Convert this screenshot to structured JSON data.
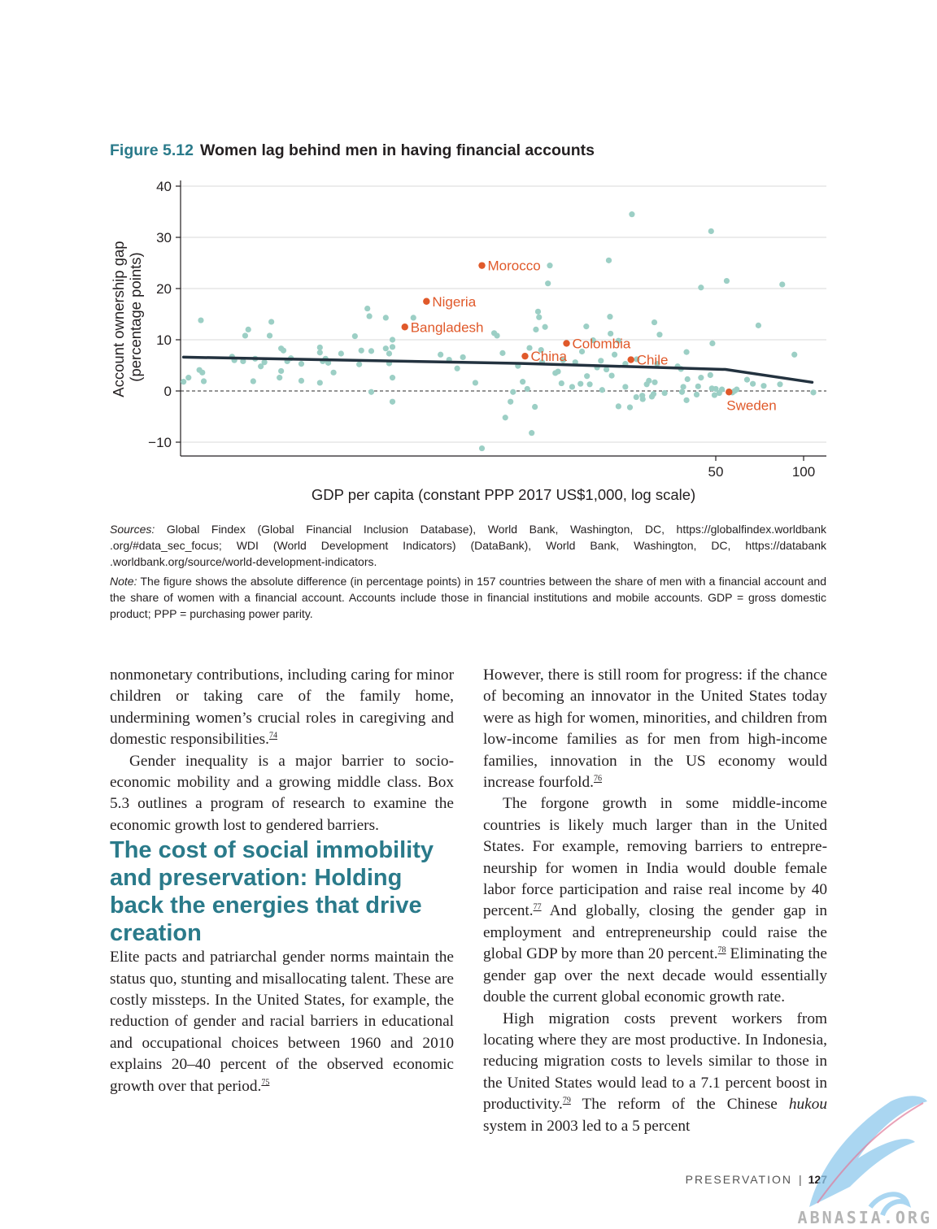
{
  "figure": {
    "number": "Figure 5.12",
    "title": "Women lag behind men in having financial accounts"
  },
  "chart_data": {
    "type": "scatter",
    "xlabel": "GDP per capita (constant PPP 2017 US$1,000, log scale)",
    "ylabel": [
      "Account ownership gap",
      "(percentage points)"
    ],
    "x_scale": "log",
    "xlim": [
      0.7,
      115
    ],
    "ylim": [
      -12,
      40
    ],
    "x_ticks": [
      {
        "v": 50,
        "label": "50"
      },
      {
        "v": 100,
        "label": "100"
      }
    ],
    "y_ticks": [
      {
        "v": 40,
        "label": "40"
      },
      {
        "v": 30,
        "label": "30"
      },
      {
        "v": 20,
        "label": "20"
      },
      {
        "v": 10,
        "label": "10"
      },
      {
        "v": 0,
        "label": "0"
      },
      {
        "v": -10,
        "label": "−10"
      }
    ],
    "grid": true,
    "zero_line": "dashed",
    "colors": {
      "points": "#9ccfc5",
      "highlight": "#e0592a",
      "trend": "#23323f",
      "grid": "#d9d9d9"
    },
    "trend_line": [
      {
        "x": 0.75,
        "y": 6.6
      },
      {
        "x": 10.5,
        "y": 5.4
      },
      {
        "x": 54,
        "y": 4.2
      },
      {
        "x": 107,
        "y": 1.7
      }
    ],
    "highlighted": [
      {
        "label": "Morocco",
        "x": 7.9,
        "y": 24.5,
        "label_pos": "right"
      },
      {
        "label": "Nigeria",
        "x": 5.1,
        "y": 17.5,
        "label_pos": "right"
      },
      {
        "label": "Bangladesh",
        "x": 5.1,
        "y": 12.5,
        "label_pos": "right",
        "dot_x": 4.3
      },
      {
        "label": "Colombia",
        "x": 15.4,
        "y": 9.3,
        "label_pos": "right"
      },
      {
        "label": "China",
        "x": 11.1,
        "y": 6.8,
        "label_pos": "right"
      },
      {
        "label": "Chile",
        "x": 25.6,
        "y": 6.1,
        "label_pos": "right"
      },
      {
        "label": "Sweden",
        "x": 55.5,
        "y": -0.2,
        "label_pos": "below"
      }
    ],
    "points": [
      [
        0.75,
        1.8
      ],
      [
        0.78,
        2.6
      ],
      [
        0.85,
        4.1
      ],
      [
        0.87,
        3.6
      ],
      [
        0.88,
        1.9
      ],
      [
        0.86,
        13.8
      ],
      [
        1.1,
        6.7
      ],
      [
        1.12,
        6.0
      ],
      [
        1.2,
        5.8
      ],
      [
        1.22,
        10.8
      ],
      [
        1.25,
        12.0
      ],
      [
        1.3,
        1.9
      ],
      [
        1.32,
        6.3
      ],
      [
        1.38,
        4.8
      ],
      [
        1.42,
        5.6
      ],
      [
        1.48,
        10.8
      ],
      [
        1.5,
        13.5
      ],
      [
        1.62,
        8.3
      ],
      [
        1.65,
        7.9
      ],
      [
        1.7,
        5.8
      ],
      [
        1.75,
        6.4
      ],
      [
        1.62,
        3.9
      ],
      [
        1.6,
        2.6
      ],
      [
        1.9,
        5.3
      ],
      [
        1.9,
        2.0
      ],
      [
        2.2,
        8.5
      ],
      [
        2.2,
        7.5
      ],
      [
        2.2,
        1.6
      ],
      [
        2.25,
        5.8
      ],
      [
        2.3,
        6.3
      ],
      [
        2.35,
        5.5
      ],
      [
        2.45,
        3.6
      ],
      [
        2.6,
        7.3
      ],
      [
        2.9,
        10.7
      ],
      [
        3.0,
        5.2
      ],
      [
        3.05,
        7.9
      ],
      [
        3.3,
        7.8
      ],
      [
        3.3,
        -0.2
      ],
      [
        3.2,
        16.1
      ],
      [
        3.25,
        14.6
      ],
      [
        3.7,
        14.3
      ],
      [
        3.7,
        8.3
      ],
      [
        3.8,
        7.3
      ],
      [
        3.8,
        5.4
      ],
      [
        3.9,
        10.0
      ],
      [
        3.9,
        8.6
      ],
      [
        3.9,
        2.6
      ],
      [
        3.9,
        -2.1
      ],
      [
        4.6,
        14.3
      ],
      [
        5.7,
        7.1
      ],
      [
        6.1,
        6.1
      ],
      [
        6.8,
        6.6
      ],
      [
        6.5,
        4.4
      ],
      [
        7.5,
        1.6
      ],
      [
        7.9,
        -11.2
      ],
      [
        8.7,
        11.3
      ],
      [
        8.9,
        10.8
      ],
      [
        9.3,
        7.4
      ],
      [
        9.5,
        -5.2
      ],
      [
        9.9,
        -2.1
      ],
      [
        10.1,
        -0.2
      ],
      [
        10.5,
        4.9
      ],
      [
        10.9,
        1.8
      ],
      [
        11.3,
        0.4
      ],
      [
        11.5,
        8.4
      ],
      [
        11.7,
        -8.2
      ],
      [
        12.0,
        -3.1
      ],
      [
        12.1,
        12.0
      ],
      [
        12.3,
        15.5
      ],
      [
        12.4,
        14.4
      ],
      [
        12.6,
        8.0
      ],
      [
        12.7,
        5.6
      ],
      [
        13.0,
        12.5
      ],
      [
        13.3,
        21.0
      ],
      [
        13.5,
        24.5
      ],
      [
        14.1,
        3.5
      ],
      [
        14.4,
        3.8
      ],
      [
        14.8,
        1.5
      ],
      [
        15.0,
        6.0
      ],
      [
        16.1,
        0.8
      ],
      [
        16.5,
        5.6
      ],
      [
        17.2,
        1.4
      ],
      [
        17.4,
        7.7
      ],
      [
        18.0,
        12.6
      ],
      [
        18.1,
        2.9
      ],
      [
        18.5,
        1.3
      ],
      [
        19.0,
        9.9
      ],
      [
        19.6,
        4.6
      ],
      [
        20.2,
        5.9
      ],
      [
        20.4,
        0.2
      ],
      [
        21.1,
        4.2
      ],
      [
        21.5,
        25.5
      ],
      [
        21.7,
        14.5
      ],
      [
        21.8,
        11.2
      ],
      [
        22.0,
        3.0
      ],
      [
        22.5,
        7.1
      ],
      [
        23.2,
        -3.0
      ],
      [
        23.2,
        9.8
      ],
      [
        24.5,
        5.3
      ],
      [
        24.5,
        0.8
      ],
      [
        25.4,
        -3.2
      ],
      [
        25.8,
        34.5
      ],
      [
        26.7,
        -1.2
      ],
      [
        26.8,
        6.2
      ],
      [
        28.0,
        -0.9
      ],
      [
        28.1,
        -1.6
      ],
      [
        29.0,
        1.3
      ],
      [
        29.5,
        2.0
      ],
      [
        30.2,
        -1.1
      ],
      [
        30.6,
        -0.6
      ],
      [
        30.9,
        1.7
      ],
      [
        30.8,
        13.4
      ],
      [
        31.5,
        5.3
      ],
      [
        32.1,
        11.0
      ],
      [
        33.4,
        -0.4
      ],
      [
        37.0,
        4.8
      ],
      [
        38.0,
        4.3
      ],
      [
        38.3,
        -0.2
      ],
      [
        38.7,
        0.8
      ],
      [
        39.7,
        -1.8
      ],
      [
        40.0,
        2.3
      ],
      [
        39.7,
        7.6
      ],
      [
        43.0,
        -0.7
      ],
      [
        43.5,
        0.9
      ],
      [
        44.5,
        2.6
      ],
      [
        44.5,
        20.2
      ],
      [
        47.9,
        3.1
      ],
      [
        48.5,
        0.5
      ],
      [
        48.7,
        9.3
      ],
      [
        48.2,
        31.2
      ],
      [
        49.5,
        -0.8
      ],
      [
        50.0,
        0.4
      ],
      [
        51.4,
        -0.4
      ],
      [
        52.5,
        0.3
      ],
      [
        54.5,
        21.5
      ],
      [
        57.0,
        -0.3
      ],
      [
        58.0,
        0.0
      ],
      [
        59.0,
        0.3
      ],
      [
        64.0,
        2.2
      ],
      [
        67.0,
        1.4
      ],
      [
        70.0,
        12.8
      ],
      [
        73.0,
        1.0
      ],
      [
        83.0,
        1.3
      ],
      [
        84.5,
        20.8
      ],
      [
        93.0,
        7.1
      ],
      [
        108,
        -0.3
      ]
    ]
  },
  "notes": {
    "sources_label": "Sources:",
    "sources_text": "Global Findex (Global Financial Inclusion Database), World Bank, Washington, DC, https://globalfindex.worldbank .org/#data_sec_focus; WDI (World Development Indicators) (DataBank), World Bank, Washington, DC, https://databank .worldbank.org/source/world-development-indicators.",
    "note_label": "Note:",
    "note_text": "The figure shows the absolute difference (in percentage points) in 157 countries between the share of men with a financial account and the share of women with a financial account. Accounts include those in financial institutions and mobile accounts. GDP = gross domestic product; PPP = purchasing power parity."
  },
  "body": {
    "left": {
      "p1_text": "nonmonetary contributions, including caring for minor children or taking care of the family home, undermining women’s crucial roles in caregiving and domestic responsibilities.",
      "p1_ref": "74",
      "p2_text": "Gender inequality is a major barrier to socio­economic mobility and a growing middle class. Box 5.3 outlines a program of research to examine the economic growth lost to gendered barriers.",
      "heading": "The cost of social immobility and preservation: Holding back the energies that drive creation",
      "p3_text": "Elite pacts and patriarchal gender norms maintain the status quo, stunting and misallocating talent. These are costly missteps. In the United States, for example, the reduction of gender and racial barriers in educational and occupational choices between 1960 and 2010 explains 20–40 percent of the observed economic growth over that period.",
      "p3_ref": "75"
    },
    "right": {
      "p1_text": "However, there is still room for progress: if the chance of becoming an innovator in the United States today were as high for women, minorities, and children from low-income families as for men from high-income families, innovation in the US economy would increase fourfold.",
      "p1_ref": "76",
      "p2_a": "The forgone growth in some middle-income countries is likely much larger than in the United States. For example, removing barriers to entrepre­neurship for women in India would double female labor force participation and raise real income by 40 percent.",
      "p2_ref1": "77",
      "p2_b": " And globally, closing the gender gap in employment and entrepreneurship could raise the global GDP by more than 20 percent.",
      "p2_ref2": "78",
      "p2_c": " Eliminating the gender gap over the next decade would essentially double the current global economic growth rate.",
      "p3_a": "High migration costs prevent workers from locating where they are most productive. In Indonesia, reducing migration costs to levels sim­ilar to those in the United States would lead to a 7.1 percent boost in productivity.",
      "p3_ref": "79",
      "p3_b": " The reform of the Chinese ",
      "p3_em": "hukou",
      "p3_c": " system in 2003 led to a 5 percent"
    }
  },
  "footer": {
    "section": "PRESERVATION",
    "separator": "|",
    "page": "127"
  },
  "watermark": {
    "text": "ABNASIA.ORG",
    "icon": "quill-pen-icon"
  }
}
